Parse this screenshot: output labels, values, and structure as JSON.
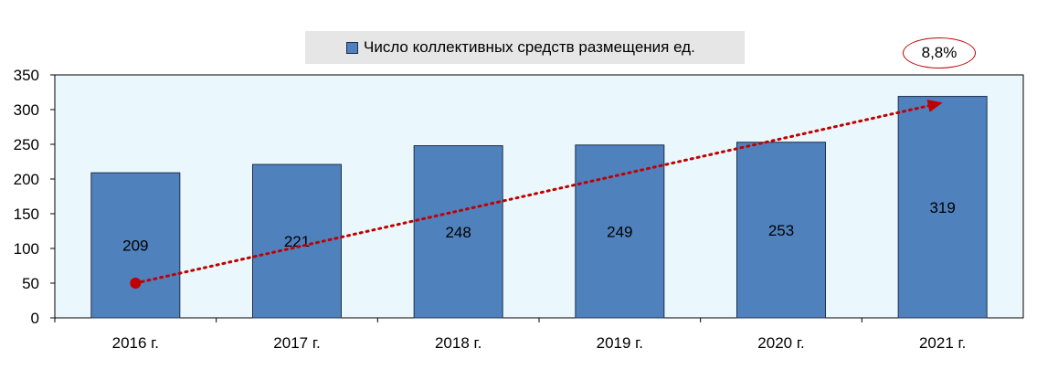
{
  "chart_data": {
    "type": "bar",
    "categories": [
      "2016 г.",
      "2017 г.",
      "2018 г.",
      "2019 г.",
      "2020 г.",
      "2021 г."
    ],
    "series": [
      {
        "name": "Число коллективных средств размещения ед.",
        "values": [
          209,
          221,
          248,
          249,
          253,
          319
        ]
      }
    ],
    "data_labels": [
      "209",
      "221",
      "248",
      "249",
      "253",
      "319"
    ],
    "yticks": [
      "0",
      "50",
      "100",
      "150",
      "200",
      "250",
      "300",
      "350"
    ],
    "ylim": [
      0,
      350
    ],
    "legend": {
      "label": "Число коллективных средств размещения ед.",
      "position": "top"
    },
    "annotation": {
      "text": "8,8%",
      "trend_from": 50,
      "trend_to": 310
    },
    "colors": {
      "bar": "#4f81bd",
      "bar_border": "#1f2f4f",
      "plot_bg": "#eaf7fc",
      "trend": "#c00000",
      "legend_bg": "#e6e6e6"
    }
  }
}
